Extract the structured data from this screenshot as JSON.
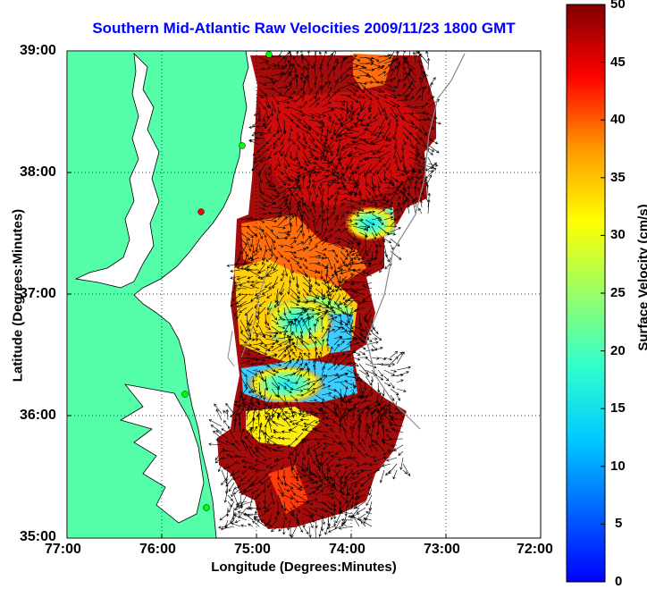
{
  "title": "Southern Mid-Atlantic Raw Velocities 2009/11/23 1800 GMT",
  "x_axis": {
    "label": "Longitude (Degrees:Minutes)",
    "ticks": [
      "77:00",
      "76:00",
      "75:00",
      "74:00",
      "73:00",
      "72:00"
    ]
  },
  "y_axis": {
    "label": "Latitude (Degrees:Minutes)",
    "ticks": [
      "39:00",
      "38:00",
      "37:00",
      "36:00",
      "35:00"
    ]
  },
  "colorbar": {
    "label": "Surface Velocity (cm/s)",
    "ticks": [
      "50",
      "45",
      "40",
      "35",
      "30",
      "25",
      "20",
      "15",
      "10",
      "5",
      "0"
    ],
    "range": [
      0,
      50
    ]
  },
  "colors": {
    "land": "#55ffaa",
    "title": "#0000ff",
    "station_green": "#00ff00",
    "station_red": "#ff0000"
  }
}
